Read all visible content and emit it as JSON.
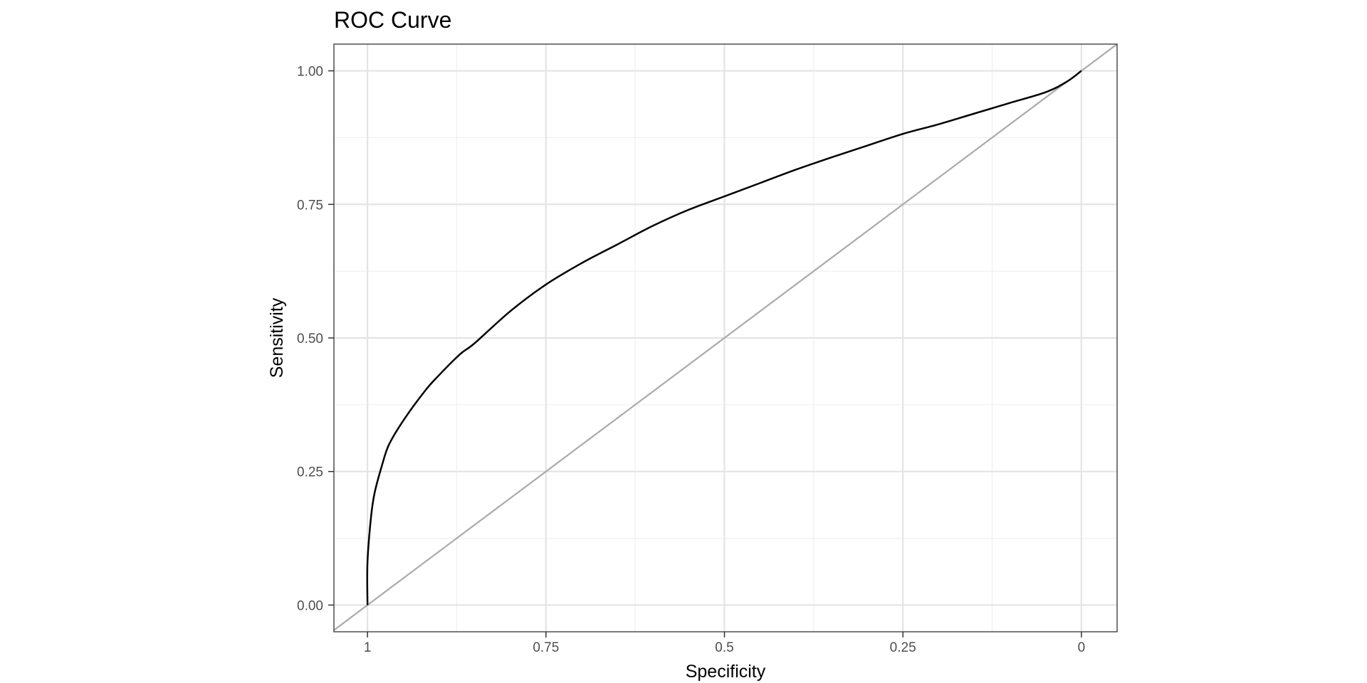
{
  "chart_data": {
    "type": "line",
    "title": "ROC Curve",
    "xlabel": "Specificity",
    "ylabel": "Sensitivity",
    "x_reversed": true,
    "xlim": [
      1.047,
      -0.05
    ],
    "ylim": [
      -0.05,
      1.05
    ],
    "x_ticks": [
      {
        "value": 1,
        "label": "1"
      },
      {
        "value": 0.75,
        "label": "0.75"
      },
      {
        "value": 0.5,
        "label": "0.5"
      },
      {
        "value": 0.25,
        "label": "0.25"
      },
      {
        "value": 0,
        "label": "0"
      }
    ],
    "x_minor_ticks": [
      0.875,
      0.625,
      0.375,
      0.125
    ],
    "y_ticks": [
      {
        "value": 0,
        "label": "0.00"
      },
      {
        "value": 0.25,
        "label": "0.25"
      },
      {
        "value": 0.5,
        "label": "0.50"
      },
      {
        "value": 0.75,
        "label": "0.75"
      },
      {
        "value": 1,
        "label": "1.00"
      }
    ],
    "y_minor_ticks": [
      0.125,
      0.375,
      0.625,
      0.875
    ],
    "grid": true,
    "series": [
      {
        "color": "#000000",
        "specificity": [
          1.0,
          1.0,
          0.995,
          0.99,
          0.98,
          0.97,
          0.95,
          0.92,
          0.9,
          0.87,
          0.85,
          0.8,
          0.75,
          0.7,
          0.65,
          0.6,
          0.55,
          0.5,
          0.45,
          0.4,
          0.35,
          0.3,
          0.25,
          0.2,
          0.15,
          0.1,
          0.05,
          0.02,
          0.0
        ],
        "sensitivity": [
          0.0,
          0.08,
          0.165,
          0.21,
          0.26,
          0.3,
          0.345,
          0.4,
          0.43,
          0.47,
          0.49,
          0.55,
          0.6,
          0.64,
          0.675,
          0.71,
          0.74,
          0.765,
          0.79,
          0.815,
          0.838,
          0.86,
          0.882,
          0.9,
          0.92,
          0.94,
          0.96,
          0.98,
          1.0
        ]
      }
    ],
    "reference_line": {
      "color": "#aaaaaa",
      "from": [
        1.047,
        -0.047
      ],
      "to": [
        -0.05,
        1.05
      ]
    }
  }
}
